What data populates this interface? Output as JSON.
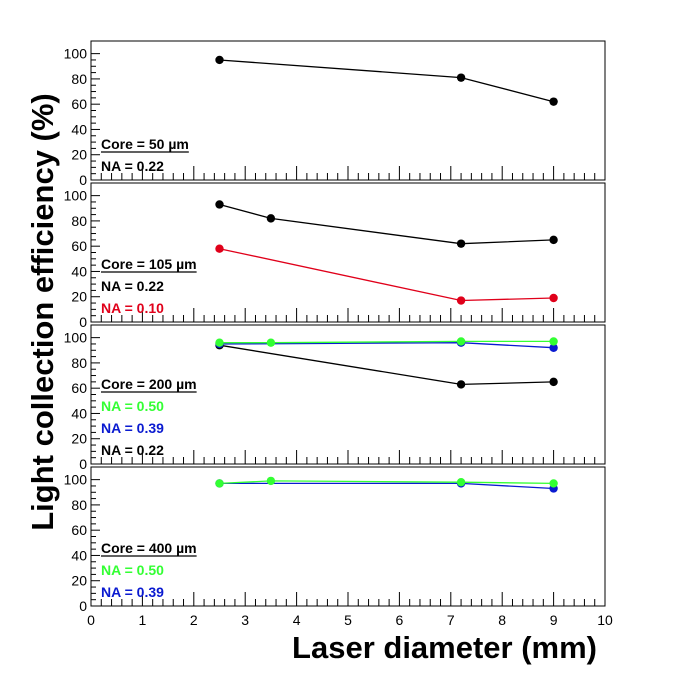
{
  "colors": {
    "black": "#000000",
    "red": "#e0001a",
    "green": "#33ff33",
    "blue": "#0a1ad0"
  },
  "chart_data": {
    "type": "line",
    "xlabel": "Laser diameter (mm)",
    "ylabel": "Light collection efficiency (%)",
    "xlim": [
      0,
      10
    ],
    "ylim": [
      0,
      110
    ],
    "x_ticks": [
      "0",
      "1",
      "2",
      "3",
      "4",
      "5",
      "6",
      "7",
      "8",
      "9",
      "10"
    ],
    "y_ticks": [
      "0",
      "20",
      "40",
      "60",
      "80",
      "100"
    ],
    "panels": [
      {
        "title": "Core = 50 µm",
        "series": [
          {
            "name": "NA = 0.22",
            "color": "#000000",
            "x": [
              2.5,
              7.2,
              9.0
            ],
            "y": [
              95,
              81,
              62
            ]
          }
        ]
      },
      {
        "title": "Core = 105 µm",
        "series": [
          {
            "name": "NA = 0.22",
            "color": "#000000",
            "x": [
              2.5,
              3.5,
              7.2,
              9.0
            ],
            "y": [
              93,
              82,
              62,
              65
            ]
          },
          {
            "name": "NA = 0.10",
            "color": "#e0001a",
            "x": [
              2.5,
              7.2,
              9.0
            ],
            "y": [
              58,
              17,
              19
            ]
          }
        ]
      },
      {
        "title": "Core = 200 µm",
        "series": [
          {
            "name": "NA = 0.50",
            "color": "#33ff33",
            "x": [
              2.5,
              3.5,
              7.2,
              9.0
            ],
            "y": [
              96,
              96,
              97,
              97
            ]
          },
          {
            "name": "NA = 0.39",
            "color": "#0a1ad0",
            "x": [
              2.5,
              7.2,
              9.0
            ],
            "y": [
              95,
              96,
              92
            ]
          },
          {
            "name": "NA = 0.22",
            "color": "#000000",
            "x": [
              2.5,
              7.2,
              9.0
            ],
            "y": [
              94,
              63,
              65
            ]
          }
        ]
      },
      {
        "title": "Core = 400 µm",
        "series": [
          {
            "name": "NA = 0.50",
            "color": "#33ff33",
            "x": [
              2.5,
              3.5,
              7.2,
              9.0
            ],
            "y": [
              97,
              99,
              98,
              97
            ]
          },
          {
            "name": "NA = 0.39",
            "color": "#0a1ad0",
            "x": [
              2.5,
              7.2,
              9.0
            ],
            "y": [
              97,
              97,
              93
            ]
          }
        ]
      }
    ]
  }
}
